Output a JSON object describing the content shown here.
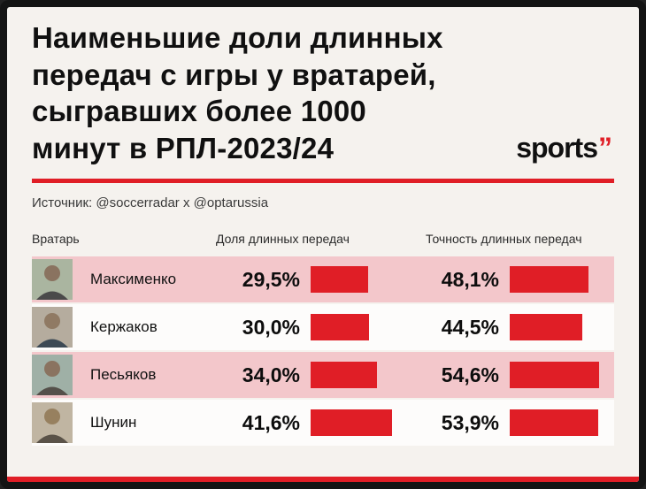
{
  "title": {
    "lines": [
      "Наименьшие доли длинных",
      "передач с игры у вратарей,",
      "сыгравших более 1000",
      "минут в РПЛ-2023/24"
    ]
  },
  "logo": {
    "text": "sports",
    "quote": "”"
  },
  "source": "Источник: @soccerradar x @optarussia",
  "columns": {
    "player": "Вратарь",
    "share": "Доля длинных передач",
    "accuracy": "Точность длинных передач"
  },
  "colors": {
    "accent_red": "#e01e26",
    "row_pink": "#f3c7cb",
    "background": "#f5f2ee"
  },
  "chart_data": {
    "type": "table",
    "title": "Наименьшие доли длинных передач с игры у вратарей, сыгравших более 1000 минут в РПЛ-2023/24",
    "source": "Источник: @soccerradar x @optarussia",
    "columns": [
      "Вратарь",
      "Доля длинных передач",
      "Точность длинных передач"
    ],
    "rows": [
      {
        "name": "Максименко",
        "share": 29.5,
        "share_label": "29,5%",
        "accuracy": 48.1,
        "accuracy_label": "48,1%"
      },
      {
        "name": "Кержаков",
        "share": 30.0,
        "share_label": "30,0%",
        "accuracy": 44.5,
        "accuracy_label": "44,5%"
      },
      {
        "name": "Песьяков",
        "share": 34.0,
        "share_label": "34,0%",
        "accuracy": 54.6,
        "accuracy_label": "54,6%"
      },
      {
        "name": "Шунин",
        "share": 41.6,
        "share_label": "41,6%",
        "accuracy": 53.9,
        "accuracy_label": "53,9%"
      }
    ]
  }
}
